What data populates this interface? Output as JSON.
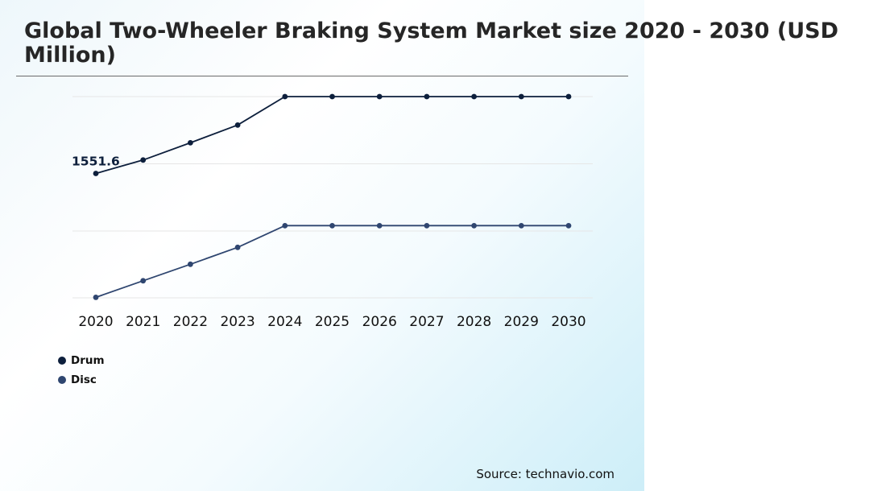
{
  "header": {
    "title": "Global Two-Wheeler Braking System Market size 2020 - 2030 (USD Million)"
  },
  "footer": {
    "source": "Source: technavio.com"
  },
  "colors": {
    "drum": "#0d1f3c",
    "disc": "#2f4670",
    "gridline": "#e6e6e6",
    "divider": "#6b6b6b"
  },
  "chart_data": {
    "type": "line",
    "title": "Global Two-Wheeler Braking System Market size 2020 - 2030 (USD Million)",
    "xlabel": "",
    "ylabel": "",
    "categories": [
      "2020",
      "2021",
      "2022",
      "2023",
      "2024",
      "2025",
      "2026",
      "2027",
      "2028",
      "2029",
      "2030"
    ],
    "series": [
      {
        "name": "Drum",
        "color": "#0d1f3c",
        "values": [
          1551.6,
          1693,
          1875,
          2062,
          2362,
          2362,
          2362,
          2362,
          2362,
          2362,
          2362
        ]
      },
      {
        "name": "Disc",
        "color": "#2f4670",
        "values": [
          245,
          420,
          594,
          772,
          1001,
          1001,
          1001,
          1001,
          1001,
          1001,
          1001
        ]
      }
    ],
    "annotations": [
      {
        "series": "Drum",
        "category": "2020",
        "text": "1551.6"
      }
    ],
    "ylim": [
      240,
      2362
    ],
    "y_axis_labels_shown": false,
    "grid": true,
    "legend_position": "bottom-left"
  }
}
